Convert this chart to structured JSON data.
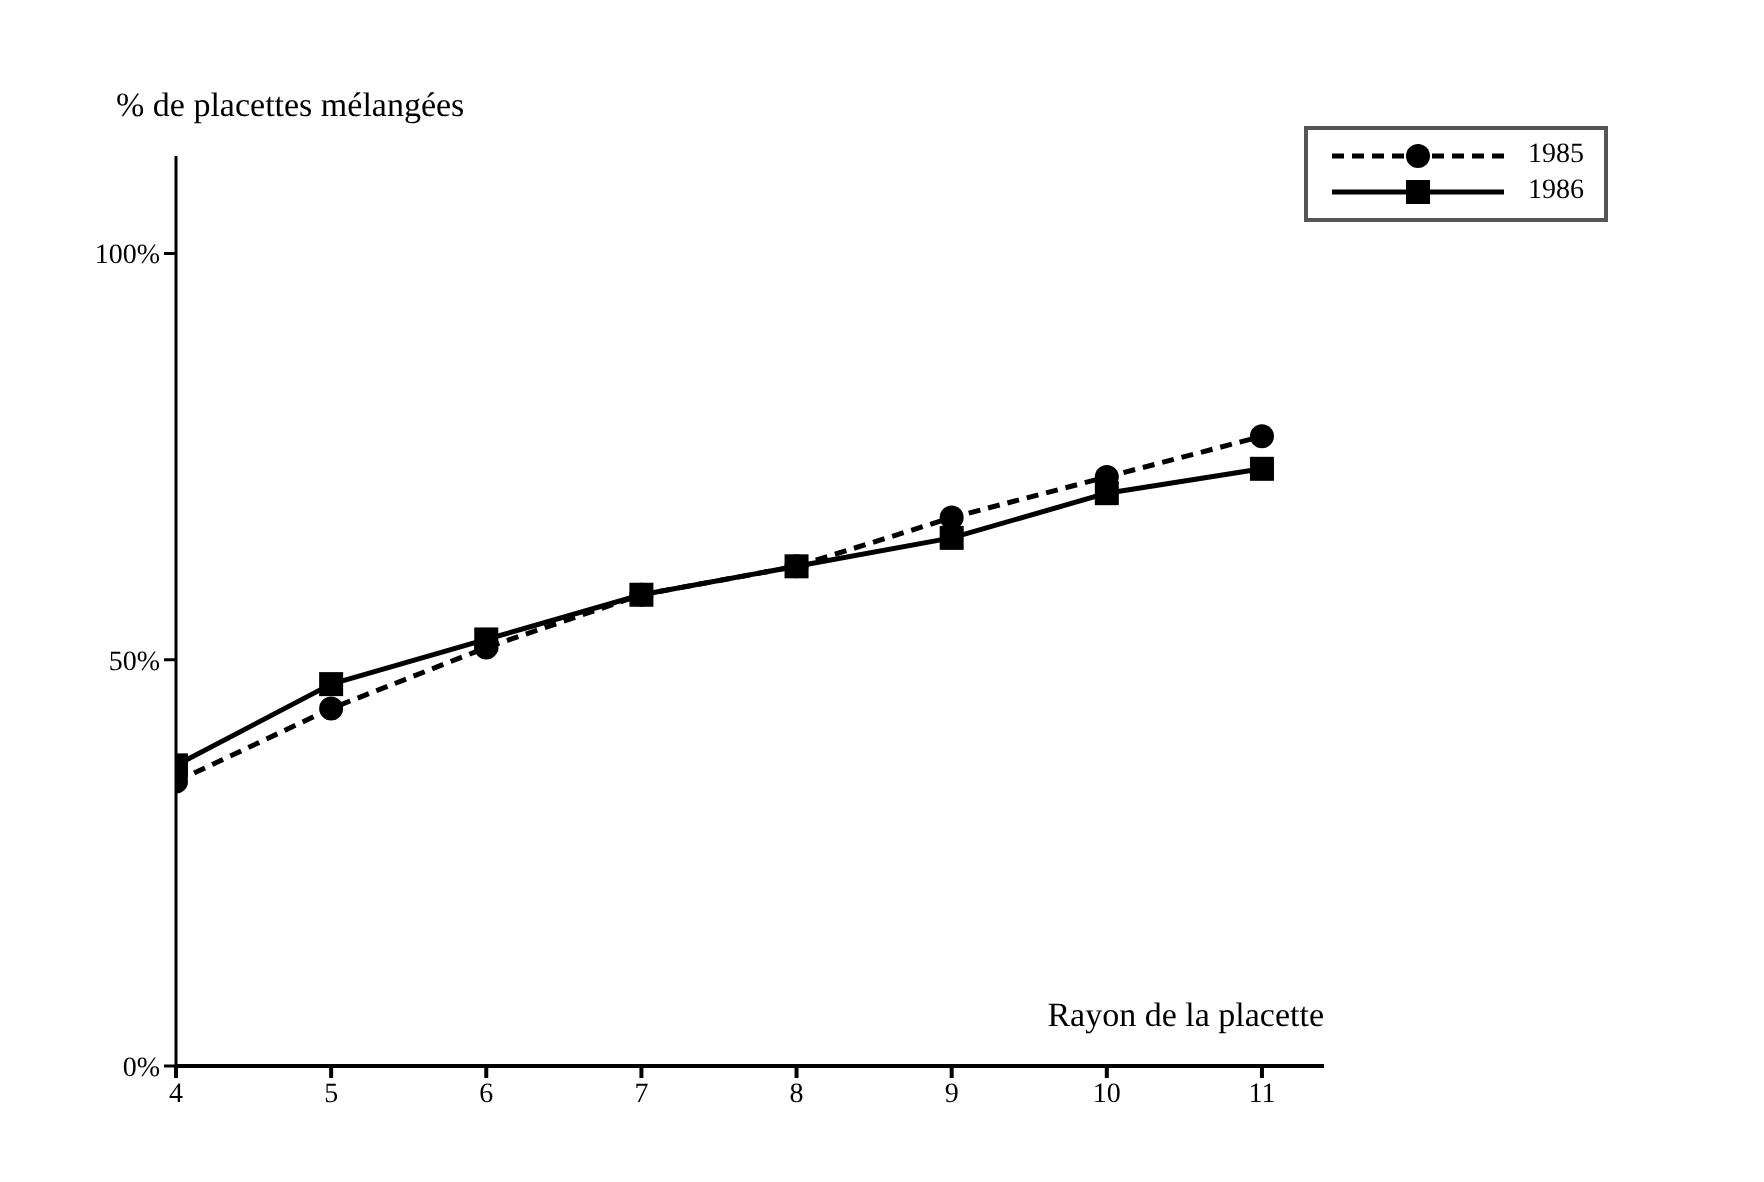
{
  "chart_data": {
    "type": "line",
    "xlabel": "Rayon de la placette",
    "ylabel": "% de placettes mélangées",
    "x": [
      4,
      5,
      6,
      7,
      8,
      9,
      10,
      11
    ],
    "series": [
      {
        "name": "1985",
        "color": "#000000",
        "line_style": "dashed",
        "marker": "circle",
        "values": [
          35,
          44,
          51.5,
          58,
          61.5,
          67.5,
          72.5,
          77.5
        ]
      },
      {
        "name": "1986",
        "color": "#000000",
        "line_style": "solid",
        "marker": "square",
        "values": [
          37,
          47,
          52.5,
          58,
          61.5,
          65,
          70.5,
          73.5
        ]
      }
    ],
    "xlim": [
      4,
      11.4
    ],
    "xticks": [
      4,
      5,
      6,
      7,
      8,
      9,
      10,
      11
    ],
    "ylim": [
      0,
      112
    ],
    "yticks": [
      {
        "value": 0,
        "label": "0%"
      },
      {
        "value": 50,
        "label": "50%"
      },
      {
        "value": 100,
        "label": "100%"
      }
    ],
    "legend": "top right"
  }
}
